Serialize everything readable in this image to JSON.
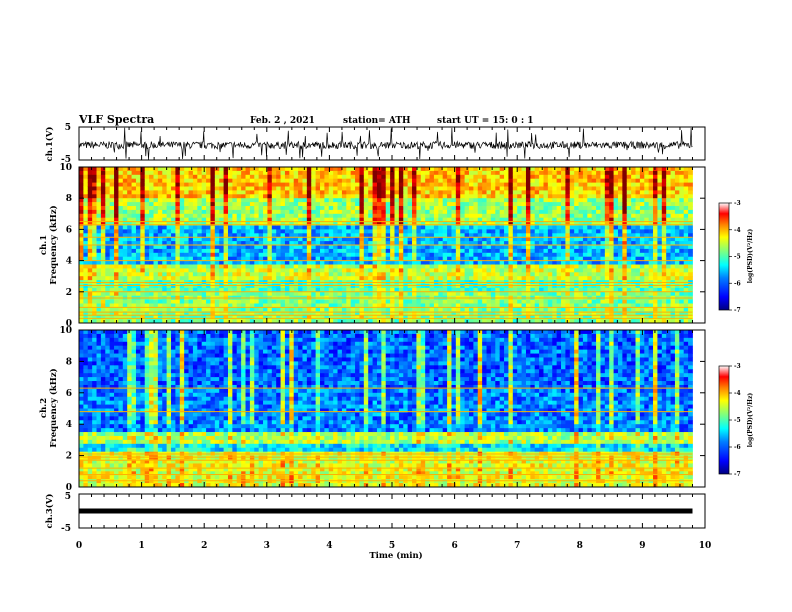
{
  "header": {
    "title": "VLF Spectra",
    "date": "Feb. 2  , 2021",
    "station": "station= ATH",
    "start": "start  UT =   15: 0  : 1"
  },
  "chart_data": [
    {
      "type": "line",
      "name": "ch1-timeseries",
      "ylabel": "ch.1(V)",
      "ylim": [
        -5,
        5
      ],
      "yticks": [
        "5",
        "-5"
      ],
      "description_values": {
        "baseline_V": -0.5,
        "typical_spike_range_V": [
          -3,
          3
        ]
      }
    },
    {
      "type": "heatmap",
      "name": "ch1-spectrogram",
      "ylabel": "ch.1\nFrequency (kHz)",
      "ylim": [
        0,
        10
      ],
      "yticks": [
        "0",
        "2",
        "4",
        "6",
        "8",
        "10"
      ],
      "colorbar": {
        "label": "log(PSD)(V²/Hz)",
        "range": [
          -7,
          -3
        ],
        "ticks": [
          "-3",
          "-4",
          "-5",
          "-6",
          "-7"
        ]
      },
      "horizontal_lines_kHz": [
        0.3,
        0.5,
        0.7,
        1.0,
        1.6,
        2.0,
        2.4,
        2.6,
        4.0,
        5.0,
        5.5,
        6.3,
        6.5
      ],
      "bands": [
        {
          "from_kHz": 0,
          "to_kHz": 2,
          "level": -5.0
        },
        {
          "from_kHz": 2,
          "to_kHz": 2.8,
          "level": -5.2
        },
        {
          "from_kHz": 2.8,
          "to_kHz": 3.7,
          "level": -4.7
        },
        {
          "from_kHz": 3.7,
          "to_kHz": 6.2,
          "level": -5.8
        },
        {
          "from_kHz": 6.2,
          "to_kHz": 8.0,
          "level": -4.9
        },
        {
          "from_kHz": 8.0,
          "to_kHz": 10,
          "level": -4.3
        }
      ]
    },
    {
      "type": "heatmap",
      "name": "ch2-spectrogram",
      "ylabel": "ch.2\nFrequency (kHz)",
      "ylim": [
        0,
        10
      ],
      "yticks": [
        "0",
        "2",
        "4",
        "6",
        "8",
        "10"
      ],
      "colorbar": {
        "label": "log(PSD)(V²/Hz)",
        "range": [
          -7,
          -3
        ],
        "ticks": [
          "-3",
          "-4",
          "-5",
          "-6",
          "-7"
        ]
      },
      "horizontal_lines_kHz": [
        0.4,
        0.8,
        1.2,
        1.7,
        1.9,
        2.1,
        4.8,
        6.3
      ],
      "bands": [
        {
          "from_kHz": 0,
          "to_kHz": 2.2,
          "level": -4.6
        },
        {
          "from_kHz": 2.2,
          "to_kHz": 2.8,
          "level": -5.6
        },
        {
          "from_kHz": 2.8,
          "to_kHz": 3.6,
          "level": -4.8
        },
        {
          "from_kHz": 3.6,
          "to_kHz": 6.2,
          "level": -6.0
        },
        {
          "from_kHz": 6.2,
          "to_kHz": 10,
          "level": -6.1
        }
      ]
    },
    {
      "type": "line",
      "name": "ch3-timeseries",
      "ylabel": "ch.3(V)",
      "ylim": [
        -5,
        5
      ],
      "yticks": [
        "5",
        "-5"
      ],
      "description_values": {
        "constant_V": 0
      }
    }
  ],
  "x_axis": {
    "label": "Time  (min)",
    "xlim": [
      0,
      10
    ],
    "data_end_min": 9.8,
    "ticks": [
      "0",
      "1",
      "2",
      "3",
      "4",
      "5",
      "6",
      "7",
      "8",
      "9",
      "10"
    ]
  },
  "colors": {
    "colormap": [
      "#00007f",
      "#0000ff",
      "#007fff",
      "#00ffff",
      "#7fff7f",
      "#ffff00",
      "#ff7f00",
      "#ff0000",
      "#7f0000"
    ]
  }
}
